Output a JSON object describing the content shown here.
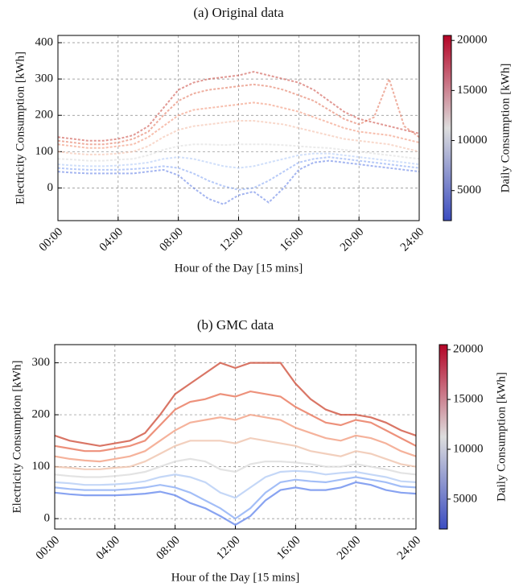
{
  "chart_data": [
    {
      "type": "line",
      "title": "(a) Original data",
      "xlabel": "Hour of the Day [15 mins]",
      "ylabel": "Electricity Consumption [kWh]",
      "line_style": "dotted",
      "grid": true,
      "x": [
        0,
        1,
        2,
        3,
        4,
        5,
        6,
        7,
        8,
        9,
        10,
        11,
        12,
        13,
        14,
        15,
        16,
        17,
        18,
        19,
        20,
        21,
        22,
        23,
        24
      ],
      "xlim": [
        0,
        24
      ],
      "xticks": [
        {
          "value": 0,
          "label": "00:00"
        },
        {
          "value": 4,
          "label": "04:00"
        },
        {
          "value": 8,
          "label": "08:00"
        },
        {
          "value": 12,
          "label": "12:00"
        },
        {
          "value": 16,
          "label": "16:00"
        },
        {
          "value": 20,
          "label": "20:00"
        },
        {
          "value": 24,
          "label": "24:00"
        }
      ],
      "ylim": [
        -90,
        420
      ],
      "yticks": [
        0,
        100,
        200,
        300,
        400
      ],
      "series": [
        {
          "color": "#c9443a",
          "values": [
            140,
            135,
            130,
            130,
            135,
            145,
            170,
            220,
            270,
            290,
            300,
            305,
            310,
            320,
            310,
            300,
            290,
            270,
            240,
            210,
            190,
            180,
            170,
            160,
            150
          ]
        },
        {
          "color": "#e06b50",
          "values": [
            130,
            125,
            120,
            120,
            125,
            135,
            155,
            200,
            240,
            260,
            270,
            275,
            280,
            285,
            280,
            270,
            255,
            240,
            215,
            190,
            175,
            195,
            300,
            170,
            140
          ]
        },
        {
          "color": "#f08a6c",
          "values": [
            120,
            115,
            110,
            110,
            115,
            120,
            140,
            170,
            200,
            215,
            220,
            225,
            230,
            235,
            230,
            220,
            210,
            195,
            180,
            165,
            155,
            150,
            145,
            135,
            125
          ]
        },
        {
          "color": "#f3b8a0",
          "values": [
            100,
            95,
            92,
            92,
            95,
            100,
            115,
            140,
            160,
            170,
            175,
            180,
            185,
            185,
            180,
            175,
            165,
            155,
            145,
            135,
            130,
            125,
            120,
            110,
            100
          ]
        },
        {
          "color": "#d9d9d9",
          "values": [
            80,
            78,
            75,
            75,
            78,
            80,
            90,
            105,
            115,
            120,
            120,
            118,
            120,
            120,
            120,
            118,
            115,
            112,
            110,
            105,
            100,
            95,
            90,
            85,
            80
          ]
        },
        {
          "color": "#a9c4f5",
          "values": [
            65,
            62,
            60,
            60,
            62,
            65,
            70,
            80,
            85,
            80,
            70,
            60,
            55,
            60,
            70,
            80,
            90,
            95,
            95,
            90,
            85,
            80,
            75,
            70,
            65
          ]
        },
        {
          "color": "#7b9ff2",
          "values": [
            55,
            52,
            50,
            50,
            50,
            52,
            55,
            60,
            55,
            40,
            20,
            5,
            -5,
            0,
            20,
            45,
            70,
            80,
            85,
            80,
            75,
            70,
            65,
            60,
            55
          ]
        },
        {
          "color": "#5a78e4",
          "values": [
            45,
            42,
            40,
            40,
            40,
            40,
            45,
            50,
            35,
            0,
            -30,
            -45,
            -20,
            -10,
            -40,
            0,
            50,
            70,
            75,
            70,
            65,
            60,
            55,
            50,
            45
          ]
        }
      ],
      "colorbar": {
        "label": "Daily Consumption [kWh]",
        "lim": [
          2000,
          20500
        ],
        "ticks": [
          5000,
          10000,
          15000,
          20000
        ],
        "colors": [
          "#3b4cc0",
          "#dddddd",
          "#b40426"
        ]
      }
    },
    {
      "type": "line",
      "title": "(b) GMC data",
      "xlabel": "Hour of the Day [15 mins]",
      "ylabel": "Electricity Consumption [kWh]",
      "line_style": "solid",
      "grid": true,
      "x": [
        0,
        1,
        2,
        3,
        4,
        5,
        6,
        7,
        8,
        9,
        10,
        11,
        12,
        13,
        14,
        15,
        16,
        17,
        18,
        19,
        20,
        21,
        22,
        23,
        24
      ],
      "xlim": [
        0,
        24
      ],
      "xticks": [
        {
          "value": 0,
          "label": "00:00"
        },
        {
          "value": 4,
          "label": "04:00"
        },
        {
          "value": 8,
          "label": "08:00"
        },
        {
          "value": 12,
          "label": "12:00"
        },
        {
          "value": 16,
          "label": "16:00"
        },
        {
          "value": 20,
          "label": "20:00"
        },
        {
          "value": 24,
          "label": "24:00"
        }
      ],
      "ylim": [
        -20,
        335
      ],
      "yticks": [
        0,
        100,
        200,
        300
      ],
      "series": [
        {
          "color": "#d0533f",
          "values": [
            160,
            150,
            145,
            140,
            145,
            150,
            165,
            200,
            240,
            260,
            280,
            300,
            290,
            300,
            300,
            300,
            260,
            230,
            210,
            200,
            200,
            195,
            185,
            170,
            160
          ]
        },
        {
          "color": "#e8765a",
          "values": [
            140,
            135,
            130,
            130,
            135,
            140,
            150,
            180,
            210,
            225,
            230,
            240,
            235,
            245,
            240,
            235,
            215,
            200,
            185,
            180,
            190,
            185,
            170,
            155,
            140
          ]
        },
        {
          "color": "#f29f82",
          "values": [
            120,
            115,
            112,
            110,
            115,
            120,
            130,
            150,
            170,
            185,
            190,
            195,
            190,
            200,
            195,
            190,
            175,
            165,
            155,
            150,
            160,
            155,
            145,
            130,
            120
          ]
        },
        {
          "color": "#efc3ad",
          "values": [
            100,
            98,
            95,
            95,
            98,
            100,
            110,
            125,
            140,
            150,
            150,
            150,
            145,
            155,
            150,
            145,
            140,
            130,
            125,
            120,
            130,
            125,
            115,
            105,
            100
          ]
        },
        {
          "color": "#dcdcdc",
          "values": [
            85,
            82,
            80,
            80,
            82,
            85,
            90,
            100,
            110,
            115,
            110,
            95,
            90,
            105,
            110,
            110,
            108,
            105,
            100,
            100,
            105,
            100,
            95,
            88,
            85
          ]
        },
        {
          "color": "#b5cdf5",
          "values": [
            70,
            68,
            65,
            65,
            66,
            68,
            72,
            80,
            85,
            80,
            70,
            50,
            40,
            60,
            80,
            90,
            92,
            90,
            85,
            88,
            90,
            85,
            80,
            72,
            70
          ]
        },
        {
          "color": "#8caef5",
          "values": [
            60,
            57,
            55,
            55,
            55,
            57,
            60,
            65,
            60,
            50,
            35,
            20,
            0,
            20,
            50,
            70,
            75,
            72,
            70,
            75,
            80,
            75,
            70,
            62,
            60
          ]
        },
        {
          "color": "#6a8ced",
          "values": [
            50,
            47,
            45,
            45,
            45,
            46,
            48,
            52,
            45,
            30,
            20,
            5,
            -12,
            5,
            35,
            55,
            60,
            55,
            55,
            60,
            70,
            65,
            55,
            50,
            48
          ]
        }
      ],
      "colorbar": {
        "label": "Daily Consumption [kWh]",
        "lim": [
          2000,
          20500
        ],
        "ticks": [
          5000,
          10000,
          15000,
          20000
        ],
        "colors": [
          "#3b4cc0",
          "#dddddd",
          "#b40426"
        ]
      }
    }
  ]
}
